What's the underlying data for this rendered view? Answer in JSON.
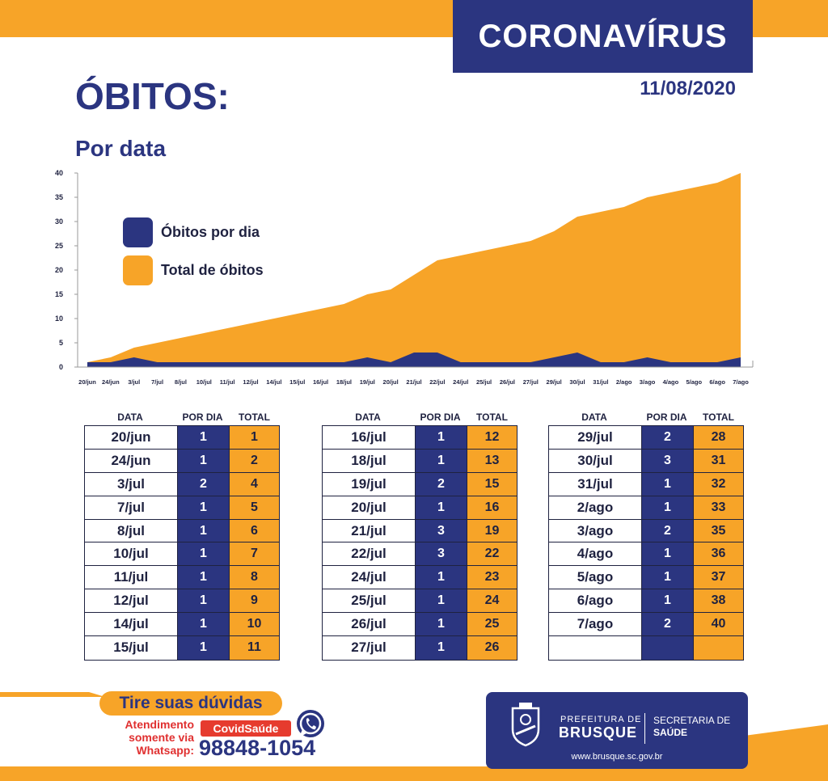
{
  "header": {
    "title": "CORONAVÍRUS",
    "date": "11/08/2020"
  },
  "main_title": "ÓBITOS:",
  "subtitle": "Por data",
  "colors": {
    "navy": "#2b3580",
    "orange": "#f7a428",
    "red": "#e63b2e"
  },
  "chart_data": {
    "type": "area",
    "title": "Por data",
    "categories": [
      "20/jun",
      "24/jun",
      "3/jul",
      "7/jul",
      "8/jul",
      "10/jul",
      "11/jul",
      "12/jul",
      "14/jul",
      "15/jul",
      "16/jul",
      "18/jul",
      "19/jul",
      "20/jul",
      "21/jul",
      "22/jul",
      "24/jul",
      "25/jul",
      "26/jul",
      "27/jul",
      "29/jul",
      "30/jul",
      "31/jul",
      "2/ago",
      "3/ago",
      "4/ago",
      "5/ago",
      "6/ago",
      "7/ago"
    ],
    "series": [
      {
        "name": "Óbitos por dia",
        "color": "#2b3580",
        "values": [
          1,
          1,
          2,
          1,
          1,
          1,
          1,
          1,
          1,
          1,
          1,
          1,
          2,
          1,
          3,
          3,
          1,
          1,
          1,
          1,
          2,
          3,
          1,
          1,
          2,
          1,
          1,
          1,
          2
        ]
      },
      {
        "name": "Total de óbitos",
        "color": "#f7a428",
        "values": [
          1,
          2,
          4,
          5,
          6,
          7,
          8,
          9,
          10,
          11,
          12,
          13,
          15,
          16,
          19,
          22,
          23,
          24,
          25,
          26,
          28,
          31,
          32,
          33,
          35,
          36,
          37,
          38,
          40
        ]
      }
    ],
    "ylim": [
      0,
      40
    ],
    "yticks": [
      0,
      5,
      10,
      15,
      20,
      25,
      30,
      35,
      40
    ],
    "xlabel": "",
    "ylabel": "",
    "legend_position": "top-left"
  },
  "table": {
    "headers": [
      "DATA",
      "POR DIA",
      "TOTAL"
    ],
    "columns": [
      [
        {
          "date": "20/jun",
          "per_day": "1",
          "total": "1"
        },
        {
          "date": "24/jun",
          "per_day": "1",
          "total": "2"
        },
        {
          "date": "3/jul",
          "per_day": "2",
          "total": "4"
        },
        {
          "date": "7/jul",
          "per_day": "1",
          "total": "5"
        },
        {
          "date": "8/jul",
          "per_day": "1",
          "total": "6"
        },
        {
          "date": "10/jul",
          "per_day": "1",
          "total": "7"
        },
        {
          "date": "11/jul",
          "per_day": "1",
          "total": "8"
        },
        {
          "date": "12/jul",
          "per_day": "1",
          "total": "9"
        },
        {
          "date": "14/jul",
          "per_day": "1",
          "total": "10"
        },
        {
          "date": "15/jul",
          "per_day": "1",
          "total": "11"
        }
      ],
      [
        {
          "date": "16/jul",
          "per_day": "1",
          "total": "12"
        },
        {
          "date": "18/jul",
          "per_day": "1",
          "total": "13"
        },
        {
          "date": "19/jul",
          "per_day": "2",
          "total": "15"
        },
        {
          "date": "20/jul",
          "per_day": "1",
          "total": "16"
        },
        {
          "date": "21/jul",
          "per_day": "3",
          "total": "19"
        },
        {
          "date": "22/jul",
          "per_day": "3",
          "total": "22"
        },
        {
          "date": "24/jul",
          "per_day": "1",
          "total": "23"
        },
        {
          "date": "25/jul",
          "per_day": "1",
          "total": "24"
        },
        {
          "date": "26/jul",
          "per_day": "1",
          "total": "25"
        },
        {
          "date": "27/jul",
          "per_day": "1",
          "total": "26"
        }
      ],
      [
        {
          "date": "29/jul",
          "per_day": "2",
          "total": "28"
        },
        {
          "date": "30/jul",
          "per_day": "3",
          "total": "31"
        },
        {
          "date": "31/jul",
          "per_day": "1",
          "total": "32"
        },
        {
          "date": "2/ago",
          "per_day": "1",
          "total": "33"
        },
        {
          "date": "3/ago",
          "per_day": "2",
          "total": "35"
        },
        {
          "date": "4/ago",
          "per_day": "1",
          "total": "36"
        },
        {
          "date": "5/ago",
          "per_day": "1",
          "total": "37"
        },
        {
          "date": "6/ago",
          "per_day": "1",
          "total": "38"
        },
        {
          "date": "7/ago",
          "per_day": "2",
          "total": "40"
        },
        {
          "date": "",
          "per_day": "",
          "total": ""
        }
      ]
    ]
  },
  "footer": {
    "cta_title": "Tire suas dúvidas",
    "cta_line1": "Atendimento",
    "cta_line2": "somente via",
    "cta_line3": "Whatsapp:",
    "badge": "CovidSaúde",
    "phone": "98848-1054",
    "logo_prefeitura": "PREFEITURA DE",
    "logo_city": "BRUSQUE",
    "logo_secretaria": "SECRETARIA DE",
    "logo_saude": "SAÚDE",
    "logo_url": "www.brusque.sc.gov.br"
  }
}
